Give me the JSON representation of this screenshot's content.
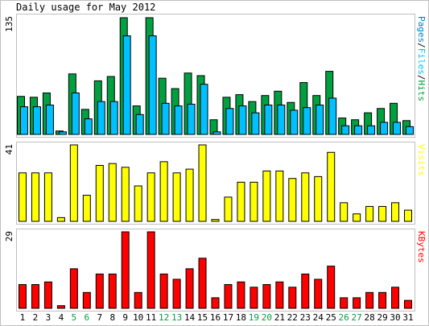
{
  "title": "Daily usage for May 2012",
  "colors": {
    "frame": "#c0c0c0",
    "hits": "#00a040",
    "files": "#00c0ff",
    "visits": "#ffff00",
    "kbytes": "#ff0000",
    "weekday": "#000000",
    "weekend": "#00a040"
  },
  "chart_data": [
    {
      "type": "bar",
      "ylabel_parts": [
        {
          "text": "Pages",
          "color": "#0080c0"
        },
        {
          "text": "/",
          "color": "#000000"
        },
        {
          "text": "Files",
          "color": "#00c0ff"
        },
        {
          "text": "/",
          "color": "#000000"
        },
        {
          "text": "Hits",
          "color": "#00a040"
        }
      ],
      "ymax_label": "135",
      "ylim": [
        0,
        135
      ],
      "categories": [
        "1",
        "2",
        "3",
        "4",
        "5",
        "6",
        "7",
        "8",
        "9",
        "10",
        "11",
        "12",
        "13",
        "14",
        "15",
        "16",
        "17",
        "18",
        "19",
        "20",
        "21",
        "22",
        "23",
        "24",
        "25",
        "26",
        "27",
        "28",
        "29",
        "30",
        "31"
      ],
      "weekend_days": [
        "5",
        "6",
        "12",
        "13",
        "19",
        "20",
        "26",
        "27"
      ],
      "series": [
        {
          "name": "Hits",
          "color": "#00a040",
          "values": [
            44,
            43,
            48,
            4,
            70,
            29,
            62,
            67,
            135,
            33,
            135,
            65,
            53,
            71,
            68,
            17,
            43,
            46,
            38,
            45,
            50,
            37,
            60,
            45,
            73,
            19,
            17,
            25,
            30,
            36,
            16
          ]
        },
        {
          "name": "Files",
          "color": "#00c0ff",
          "values": [
            32,
            32,
            34,
            3,
            48,
            18,
            38,
            38,
            114,
            23,
            114,
            36,
            33,
            35,
            58,
            3,
            30,
            33,
            25,
            34,
            34,
            28,
            31,
            34,
            42,
            10,
            10,
            10,
            14,
            14,
            9
          ]
        }
      ]
    },
    {
      "type": "bar",
      "ylabel_parts": [
        {
          "text": "Visits",
          "color": "#ffff00"
        }
      ],
      "ymax_label": "41",
      "ylim": [
        0,
        41
      ],
      "categories": [
        "1",
        "2",
        "3",
        "4",
        "5",
        "6",
        "7",
        "8",
        "9",
        "10",
        "11",
        "12",
        "13",
        "14",
        "15",
        "16",
        "17",
        "18",
        "19",
        "20",
        "21",
        "22",
        "23",
        "24",
        "25",
        "26",
        "27",
        "28",
        "29",
        "30",
        "31"
      ],
      "series": [
        {
          "name": "Visits",
          "color": "#ffff00",
          "values": [
            26,
            26,
            26,
            2,
            41,
            14,
            30,
            31,
            29,
            19,
            26,
            32,
            26,
            28,
            41,
            1,
            13,
            21,
            21,
            27,
            27,
            23,
            26,
            24,
            37,
            10,
            4,
            8,
            8,
            10,
            6
          ]
        }
      ]
    },
    {
      "type": "bar",
      "ylabel_parts": [
        {
          "text": "KBytes",
          "color": "#ff0000"
        }
      ],
      "ymax_label": "29",
      "ylim": [
        0,
        29
      ],
      "categories": [
        "1",
        "2",
        "3",
        "4",
        "5",
        "6",
        "7",
        "8",
        "9",
        "10",
        "11",
        "12",
        "13",
        "14",
        "15",
        "16",
        "17",
        "18",
        "19",
        "20",
        "21",
        "22",
        "23",
        "24",
        "25",
        "26",
        "27",
        "28",
        "29",
        "30",
        "31"
      ],
      "series": [
        {
          "name": "KBytes",
          "color": "#ff0000",
          "values": [
            9,
            9,
            10,
            1,
            15,
            6,
            13,
            13,
            29,
            6,
            29,
            13,
            11,
            15,
            19,
            4,
            9,
            10,
            8,
            9,
            10,
            8,
            13,
            11,
            16,
            4,
            4,
            6,
            6,
            8,
            3
          ]
        }
      ]
    }
  ]
}
